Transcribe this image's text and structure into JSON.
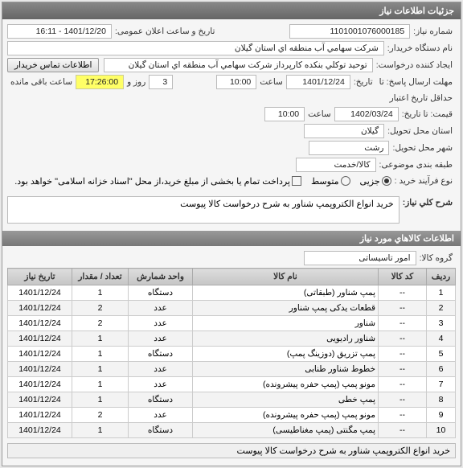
{
  "panel_title": "جزئیات اطلاعات نیاز",
  "niaz_no_label": "شماره نیاز:",
  "niaz_no": "1101001076000185",
  "announce_label": "تاریخ و ساعت اعلان عمومی:",
  "announce_val": "1401/12/20 - 16:11",
  "buyer_device_label": "نام دستگاه خریدار:",
  "buyer_device": "شركت سهامي آب منطقه اي استان گيلان",
  "creator_label": "ایجاد کننده درخواست:",
  "creator": "توحيد توكلي بنكده كارپرداز شركت سهامي آب منطقه اي استان گيلان",
  "contact_btn": "اطلاعات تماس خریدار",
  "deadline_label": "مهلت ارسال پاسخ: تا",
  "deadline_label2": "تاریخ:",
  "deadline_date": "1401/12/24",
  "saat_label": "ساعت",
  "deadline_time": "10:00",
  "days_count": "3",
  "rooz_label": "روز و",
  "remain_time": "17:26:00",
  "remain_label": "ساعت باقی مانده",
  "credit_open_label": "حداقل تاریخ اعتبار",
  "quote_label": "قیمت: تا تاریخ:",
  "credit_date": "1402/03/24",
  "credit_time": "10:00",
  "province_label": "استان محل تحویل:",
  "province": "گیلان",
  "city_label": "شهر محل تحویل:",
  "city": "رشت",
  "category_label": "طبقه بندی موضوعی:",
  "cat_item": "کالا/خدمت",
  "proc_type_label": "نوع فرآیند خرید :",
  "opt_small": "جزیی",
  "opt_med": "متوسط",
  "opt_large": "پرداخت تمام یا بخشی از مبلغ خرید،از محل \"اسناد خزانه اسلامی\" خواهد بود.",
  "desc_label": "شرح كلي نياز:",
  "desc_val": "خرید انواع الکتروپمپ شناور به شرح درخواست کالا پیوست",
  "items_section": "اطلاعات كالاهاي مورد نياز",
  "goods_group_label": "گروه کالا:",
  "goods_group": "امور تاسیساتی",
  "table": {
    "headers": [
      "ردیف",
      "کد کالا",
      "نام کالا",
      "واحد شمارش",
      "تعداد / مقدار",
      "تاریخ نیاز"
    ],
    "rows": [
      [
        "1",
        "--",
        "پمپ شناور (طبقاتی)",
        "دستگاه",
        "1",
        "1401/12/24"
      ],
      [
        "2",
        "--",
        "قطعات یدکی پمپ شناور",
        "عدد",
        "2",
        "1401/12/24"
      ],
      [
        "3",
        "--",
        "شناور",
        "عدد",
        "2",
        "1401/12/24"
      ],
      [
        "4",
        "--",
        "شناور رادیویی",
        "عدد",
        "1",
        "1401/12/24"
      ],
      [
        "5",
        "--",
        "پمپ تزریق (دوزینگ پمپ)",
        "دستگاه",
        "1",
        "1401/12/24"
      ],
      [
        "6",
        "--",
        "خطوط شناور طنابی",
        "عدد",
        "1",
        "1401/12/24"
      ],
      [
        "7",
        "--",
        "مونو پمپ (پمپ حفره پیشرونده)",
        "عدد",
        "1",
        "1401/12/24"
      ],
      [
        "8",
        "--",
        "پمپ خطی",
        "دستگاه",
        "1",
        "1401/12/24"
      ],
      [
        "9",
        "--",
        "مونو پمپ (پمپ حفره پیشرونده)",
        "عدد",
        "2",
        "1401/12/24"
      ],
      [
        "10",
        "--",
        "پمپ مگنتی (پمپ مغناطیسی)",
        "دستگاه",
        "1",
        "1401/12/24"
      ]
    ]
  },
  "footer_desc": "خرید انواع الکتروپمپ شناور به شرح درخواست کالا پیوست"
}
